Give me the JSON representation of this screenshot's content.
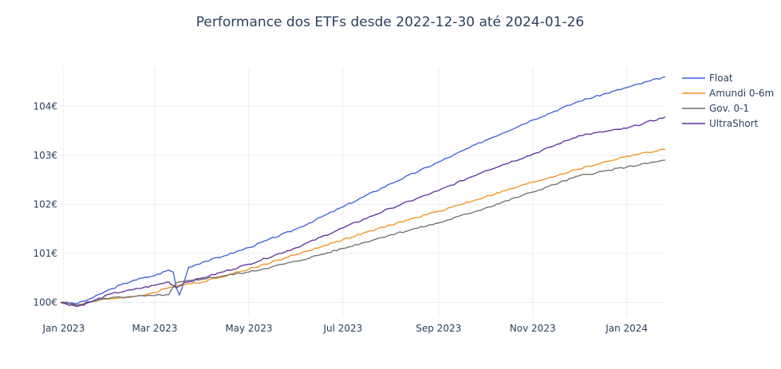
{
  "chart_data": {
    "type": "line",
    "title": "Performance dos ETFs desde 2022-12-30 até 2024-01-26",
    "xlabel": "",
    "ylabel": "",
    "x_start": "2022-12-30",
    "x_end": "2024-01-26",
    "xlim": [
      "2022-12-30",
      "2024-01-26"
    ],
    "ylim": [
      99.7,
      104.8
    ],
    "x_ticks": [
      {
        "date": "2023-01-01",
        "label": "Jan 2023"
      },
      {
        "date": "2023-03-01",
        "label": "Mar 2023"
      },
      {
        "date": "2023-05-01",
        "label": "May 2023"
      },
      {
        "date": "2023-07-01",
        "label": "Jul 2023"
      },
      {
        "date": "2023-09-01",
        "label": "Sep 2023"
      },
      {
        "date": "2023-11-01",
        "label": "Nov 2023"
      },
      {
        "date": "2024-01-01",
        "label": "Jan 2024"
      }
    ],
    "y_ticks": [
      {
        "value": 100,
        "label": "100€"
      },
      {
        "value": 101,
        "label": "101€"
      },
      {
        "value": 102,
        "label": "102€"
      },
      {
        "value": 103,
        "label": "103€"
      },
      {
        "value": 104,
        "label": "104€"
      }
    ],
    "grid": true,
    "legend_position": "right",
    "series": [
      {
        "name": "Float",
        "color": "#3b5bdb",
        "points": [
          [
            "2022-12-30",
            100.0
          ],
          [
            "2023-01-10",
            99.98
          ],
          [
            "2023-01-20",
            100.1
          ],
          [
            "2023-02-01",
            100.28
          ],
          [
            "2023-02-15",
            100.45
          ],
          [
            "2023-03-01",
            100.55
          ],
          [
            "2023-03-10",
            100.66
          ],
          [
            "2023-03-13",
            100.62
          ],
          [
            "2023-03-15",
            100.3
          ],
          [
            "2023-03-17",
            100.15
          ],
          [
            "2023-03-20",
            100.42
          ],
          [
            "2023-03-23",
            100.72
          ],
          [
            "2023-04-01",
            100.82
          ],
          [
            "2023-04-15",
            100.95
          ],
          [
            "2023-05-01",
            101.12
          ],
          [
            "2023-06-01",
            101.5
          ],
          [
            "2023-07-01",
            101.95
          ],
          [
            "2023-08-01",
            102.42
          ],
          [
            "2023-09-01",
            102.86
          ],
          [
            "2023-10-01",
            103.3
          ],
          [
            "2023-11-01",
            103.72
          ],
          [
            "2023-12-01",
            104.1
          ],
          [
            "2024-01-01",
            104.38
          ],
          [
            "2024-01-26",
            104.6
          ]
        ]
      },
      {
        "name": "Amundi 0-6m",
        "color": "#f28e1c",
        "points": [
          [
            "2022-12-30",
            100.0
          ],
          [
            "2023-01-10",
            99.95
          ],
          [
            "2023-01-20",
            100.02
          ],
          [
            "2023-02-01",
            100.08
          ],
          [
            "2023-02-15",
            100.12
          ],
          [
            "2023-03-01",
            100.2
          ],
          [
            "2023-03-15",
            100.35
          ],
          [
            "2023-04-01",
            100.42
          ],
          [
            "2023-05-01",
            100.68
          ],
          [
            "2023-06-01",
            100.98
          ],
          [
            "2023-07-01",
            101.28
          ],
          [
            "2023-08-01",
            101.58
          ],
          [
            "2023-09-01",
            101.86
          ],
          [
            "2023-10-01",
            102.15
          ],
          [
            "2023-11-01",
            102.45
          ],
          [
            "2023-12-01",
            102.72
          ],
          [
            "2024-01-01",
            102.98
          ],
          [
            "2024-01-26",
            103.12
          ]
        ]
      },
      {
        "name": "Gov. 0-1",
        "color": "#6c6c6c",
        "points": [
          [
            "2022-12-30",
            100.0
          ],
          [
            "2023-01-10",
            99.95
          ],
          [
            "2023-01-20",
            100.03
          ],
          [
            "2023-02-01",
            100.1
          ],
          [
            "2023-02-15",
            100.12
          ],
          [
            "2023-03-01",
            100.14
          ],
          [
            "2023-03-10",
            100.16
          ],
          [
            "2023-03-15",
            100.4
          ],
          [
            "2023-04-01",
            100.48
          ],
          [
            "2023-05-01",
            100.62
          ],
          [
            "2023-06-01",
            100.84
          ],
          [
            "2023-07-01",
            101.1
          ],
          [
            "2023-08-01",
            101.38
          ],
          [
            "2023-09-01",
            101.62
          ],
          [
            "2023-10-01",
            101.92
          ],
          [
            "2023-11-01",
            102.25
          ],
          [
            "2023-12-01",
            102.58
          ],
          [
            "2024-01-01",
            102.76
          ],
          [
            "2024-01-26",
            102.9
          ]
        ]
      },
      {
        "name": "UltraShort",
        "color": "#5a2d9c",
        "points": [
          [
            "2022-12-30",
            100.0
          ],
          [
            "2023-01-10",
            99.92
          ],
          [
            "2023-01-20",
            100.03
          ],
          [
            "2023-02-01",
            100.18
          ],
          [
            "2023-02-15",
            100.26
          ],
          [
            "2023-03-01",
            100.35
          ],
          [
            "2023-03-10",
            100.42
          ],
          [
            "2023-03-15",
            100.3
          ],
          [
            "2023-03-20",
            100.4
          ],
          [
            "2023-04-01",
            100.5
          ],
          [
            "2023-05-01",
            100.78
          ],
          [
            "2023-06-01",
            101.12
          ],
          [
            "2023-07-01",
            101.52
          ],
          [
            "2023-08-01",
            101.92
          ],
          [
            "2023-09-01",
            102.28
          ],
          [
            "2023-10-01",
            102.68
          ],
          [
            "2023-11-01",
            103.02
          ],
          [
            "2023-12-01",
            103.4
          ],
          [
            "2024-01-01",
            103.55
          ],
          [
            "2024-01-26",
            103.78
          ]
        ]
      }
    ]
  }
}
